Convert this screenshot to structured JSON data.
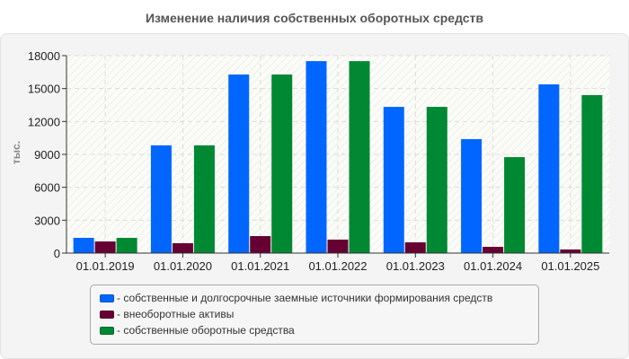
{
  "chart_data": {
    "type": "bar",
    "title": "Изменение наличия собственных оборотных средств",
    "xlabel": "",
    "ylabel": "тыс.",
    "ylim": [
      0,
      18000
    ],
    "yticks": [
      0,
      3000,
      6000,
      9000,
      12000,
      15000,
      18000
    ],
    "grid": true,
    "legend_position": "bottom",
    "categories": [
      "01.01.2019",
      "01.01.2020",
      "01.01.2021",
      "01.01.2022",
      "01.01.2023",
      "01.01.2024",
      "01.01.2025"
    ],
    "series": [
      {
        "name": "собственные и долгосрочные заемные источники формирования средств",
        "color": "#0066ff",
        "values": [
          1390,
          9820,
          16280,
          17500,
          13330,
          10390,
          15380
        ]
      },
      {
        "name": "внеоборотные активы",
        "color": "#660033",
        "values": [
          1060,
          900,
          1550,
          1230,
          980,
          570,
          330
        ]
      },
      {
        "name": "собственные оборотные средства",
        "color": "#008833",
        "values": [
          1390,
          9820,
          16280,
          17500,
          13330,
          8750,
          14400
        ]
      }
    ]
  },
  "legend": [
    {
      "label": "- собственные и долгосрочные заемные источники формирования средств",
      "color": "#0066ff"
    },
    {
      "label": "- внеоборотные активы",
      "color": "#660033"
    },
    {
      "label": "- собственные оборотные средства",
      "color": "#008833"
    }
  ]
}
